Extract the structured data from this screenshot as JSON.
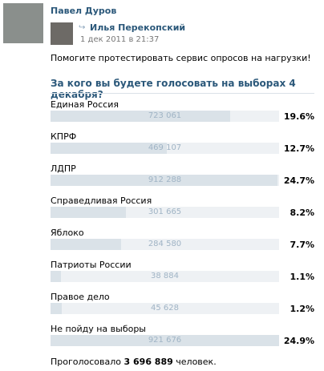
{
  "post": {
    "author": "Павел Дуров",
    "repost_author": "Илья Перекопский",
    "date": "1 дек 2011 в 21:37",
    "text": "Помогите протестировать сервис опросов на нагрузки!"
  },
  "poll": {
    "question": "За кого вы будете голосовать на выборах 4 декабря?",
    "options": [
      {
        "label": "Единая Россия",
        "votes": "723 061",
        "percent": 19.6,
        "percent_label": "19.6%"
      },
      {
        "label": "КПРФ",
        "votes": "469 107",
        "percent": 12.7,
        "percent_label": "12.7%"
      },
      {
        "label": "ЛДПР",
        "votes": "912 288",
        "percent": 24.7,
        "percent_label": "24.7%"
      },
      {
        "label": "Справедливая Россия",
        "votes": "301 665",
        "percent": 8.2,
        "percent_label": "8.2%"
      },
      {
        "label": "Яблоко",
        "votes": "284 580",
        "percent": 7.7,
        "percent_label": "7.7%"
      },
      {
        "label": "Патриоты России",
        "votes": "38 884",
        "percent": 1.1,
        "percent_label": "1.1%"
      },
      {
        "label": "Правое дело",
        "votes": "45 628",
        "percent": 1.2,
        "percent_label": "1.2%"
      },
      {
        "label": "Не пойду на выборы",
        "votes": "921 676",
        "percent": 24.9,
        "percent_label": "24.9%"
      }
    ],
    "total_prefix": "Проголосовало",
    "total": "3 696 889",
    "total_suffix": "человек."
  }
}
